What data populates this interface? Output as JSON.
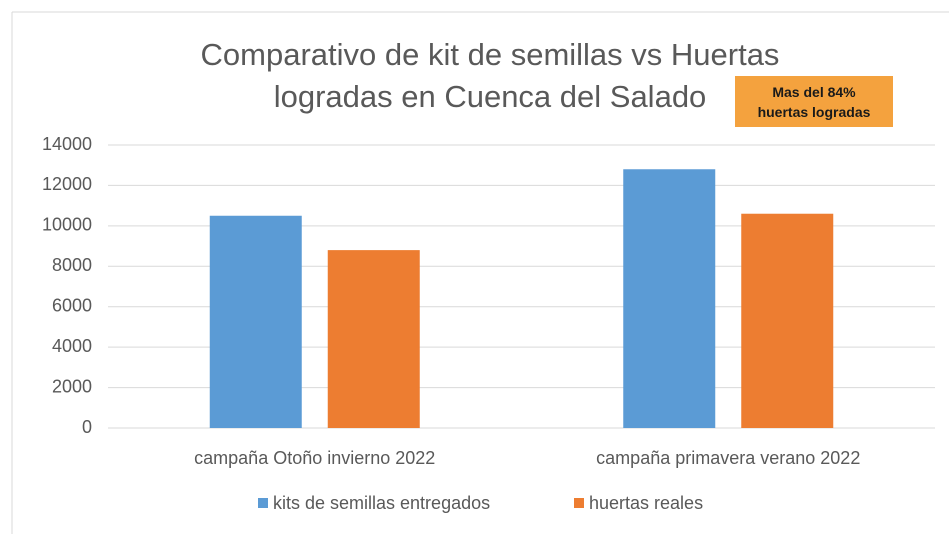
{
  "chart_data": {
    "type": "bar",
    "title": "Comparativo de kit de semillas vs Huertas logradas en Cuenca del Salado",
    "annotation": "Mas del 84% huertas logradas",
    "categories": [
      "campaña Otoño invierno 2022",
      "campaña primavera verano 2022"
    ],
    "series": [
      {
        "name": "kits de semillas entregados",
        "color": "#5b9bd5",
        "values": [
          10500,
          12800
        ]
      },
      {
        "name": "huertas reales",
        "color": "#ed7d31",
        "values": [
          8800,
          10600
        ]
      }
    ],
    "ylim": [
      0,
      14000
    ],
    "yticks": [
      0,
      2000,
      4000,
      6000,
      8000,
      10000,
      12000,
      14000
    ],
    "grid": true,
    "legend": "bottom"
  }
}
